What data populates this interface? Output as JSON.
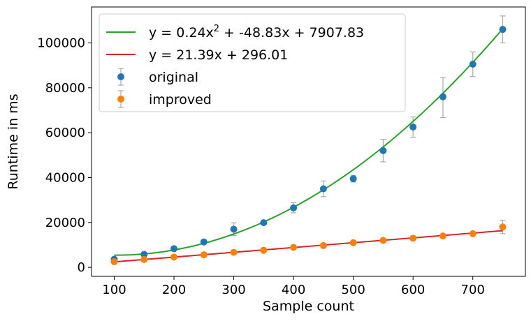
{
  "chart_data": {
    "type": "scatter",
    "xlabel": "Sample count",
    "ylabel": "Runtime in ms",
    "xlim": [
      62,
      788
    ],
    "ylim": [
      -4000,
      116000
    ],
    "xticks": [
      100,
      200,
      300,
      400,
      500,
      600,
      700
    ],
    "yticks": [
      0,
      20000,
      40000,
      60000,
      80000,
      100000
    ],
    "grid": false,
    "legend_position": "top-left",
    "x": [
      100,
      150,
      200,
      250,
      300,
      350,
      400,
      450,
      500,
      550,
      600,
      650,
      700,
      750
    ],
    "series": [
      {
        "name": "original",
        "kind": "points",
        "color": "#1f77b4",
        "values": [
          3600,
          5800,
          8300,
          11300,
          17000,
          19900,
          26500,
          35000,
          39500,
          52000,
          62500,
          76000,
          90500,
          106000
        ],
        "err_low": [
          3200,
          5400,
          7600,
          10800,
          14200,
          19400,
          24300,
          31500,
          38000,
          47000,
          58000,
          66700,
          85000,
          100000
        ],
        "err_high": [
          4000,
          6200,
          9000,
          11800,
          19800,
          20400,
          28800,
          38500,
          41000,
          57000,
          67000,
          84500,
          96000,
          112000
        ]
      },
      {
        "name": "improved",
        "kind": "points",
        "color": "#ff7f0e",
        "values": [
          2500,
          3500,
          4600,
          5600,
          6700,
          7600,
          8900,
          9700,
          11000,
          12000,
          13000,
          14000,
          15000,
          18000
        ],
        "err_low": [
          2300,
          3300,
          4400,
          5400,
          6500,
          7400,
          8600,
          9500,
          10500,
          11800,
          12700,
          13700,
          14600,
          15000
        ],
        "err_high": [
          2700,
          3700,
          4800,
          5800,
          6900,
          7800,
          9200,
          9900,
          11500,
          12200,
          13300,
          14300,
          15400,
          21000
        ]
      }
    ],
    "fits": [
      {
        "name_main": "y = 0.24x",
        "name_sup": "2",
        "name_rest": " + -48.83x + 7907.83",
        "color": "#2ca02c",
        "coeffs": [
          0.24,
          -48.83,
          7907.83
        ]
      },
      {
        "name_main": "y = 21.39x + 296.01",
        "name_sup": "",
        "name_rest": "",
        "color": "#d62728",
        "coeffs": [
          0,
          21.39,
          296.01
        ]
      }
    ],
    "errorbar_color": "#a9a9a9"
  }
}
